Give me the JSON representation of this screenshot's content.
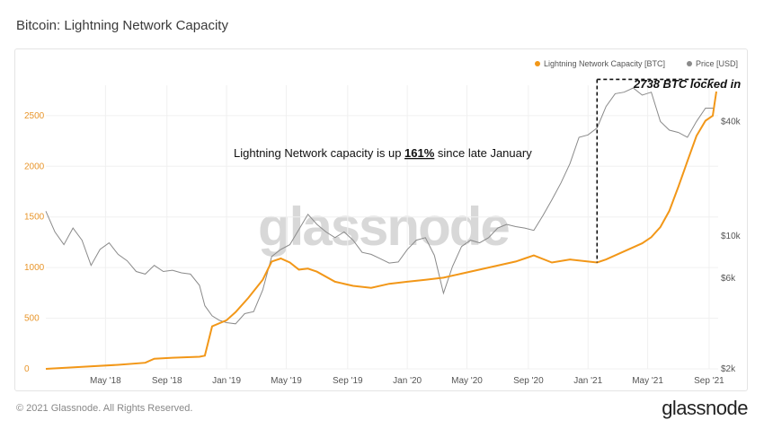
{
  "page": {
    "title": "Bitcoin: Lightning Network Capacity",
    "copyright": "© 2021 Glassnode. All Rights Reserved.",
    "logo": "glassnode"
  },
  "colors": {
    "capacity": "#f29718",
    "price": "#8a8a8a",
    "grid": "#f0f0f0",
    "axis_left": "#e8952a"
  },
  "chart_data": {
    "type": "line",
    "title": "Bitcoin: Lightning Network Capacity",
    "watermark": "glassnode",
    "x_ticks": [
      "May '18",
      "Sep '18",
      "Jan '19",
      "May '19",
      "Sep '19",
      "Jan '20",
      "May '20",
      "Sep '20",
      "Jan '21",
      "May '21",
      "Sep '21"
    ],
    "x_range": [
      2018.0,
      2021.72
    ],
    "x_tick_values": [
      2018.33,
      2018.67,
      2019.0,
      2019.33,
      2019.67,
      2020.0,
      2020.33,
      2020.67,
      2021.0,
      2021.33,
      2021.67
    ],
    "y_left": {
      "label": "Lightning Network Capacity [BTC]",
      "ticks": [
        "0",
        "500",
        "1000",
        "1500",
        "2000",
        "2500"
      ],
      "tick_values": [
        0,
        500,
        1000,
        1500,
        2000,
        2500
      ],
      "range": [
        0,
        2800
      ]
    },
    "y_right": {
      "label": "Price [USD]",
      "scale": "log",
      "ticks": [
        "$2k",
        "$6k",
        "$10k",
        "$40k"
      ],
      "tick_values": [
        2000,
        6000,
        10000,
        40000
      ],
      "range": [
        2000,
        62000
      ]
    },
    "legend": [
      {
        "name": "Lightning Network Capacity [BTC]",
        "color": "#f29718"
      },
      {
        "name": "Price [USD]",
        "color": "#8a8a8a"
      }
    ],
    "legend_position": "top-right",
    "annotations": {
      "headline_prefix": "Lightning Network capacity is up ",
      "headline_pct": "161%",
      "headline_suffix": " since late January",
      "locked_in": "2738 BTC locked in",
      "box_start_x": 2021.05,
      "box_end_x": 2021.71,
      "box_start_capacity": 1050,
      "box_end_capacity": 2738
    },
    "series": [
      {
        "name": "Lightning Network Capacity [BTC]",
        "axis": "left",
        "x": [
          2018.0,
          2018.2,
          2018.4,
          2018.55,
          2018.6,
          2018.7,
          2018.85,
          2018.88,
          2018.92,
          2019.0,
          2019.05,
          2019.12,
          2019.2,
          2019.25,
          2019.3,
          2019.35,
          2019.4,
          2019.45,
          2019.5,
          2019.6,
          2019.7,
          2019.8,
          2019.9,
          2020.0,
          2020.1,
          2020.2,
          2020.3,
          2020.4,
          2020.5,
          2020.6,
          2020.65,
          2020.7,
          2020.8,
          2020.9,
          2021.0,
          2021.05,
          2021.1,
          2021.2,
          2021.3,
          2021.35,
          2021.4,
          2021.45,
          2021.5,
          2021.55,
          2021.6,
          2021.65,
          2021.69,
          2021.7,
          2021.71
        ],
        "values": [
          0,
          20,
          40,
          60,
          100,
          110,
          120,
          130,
          420,
          480,
          560,
          700,
          880,
          1060,
          1090,
          1050,
          980,
          990,
          960,
          860,
          820,
          800,
          840,
          860,
          880,
          900,
          940,
          980,
          1020,
          1060,
          1090,
          1120,
          1050,
          1080,
          1060,
          1050,
          1080,
          1160,
          1240,
          1300,
          1400,
          1560,
          1800,
          2050,
          2300,
          2450,
          2500,
          2620,
          2738
        ]
      },
      {
        "name": "Price [USD]",
        "axis": "right",
        "x": [
          2018.0,
          2018.05,
          2018.1,
          2018.15,
          2018.2,
          2018.25,
          2018.3,
          2018.35,
          2018.4,
          2018.45,
          2018.5,
          2018.55,
          2018.6,
          2018.65,
          2018.7,
          2018.75,
          2018.8,
          2018.85,
          2018.88,
          2018.92,
          2018.96,
          2019.0,
          2019.05,
          2019.1,
          2019.15,
          2019.2,
          2019.25,
          2019.3,
          2019.35,
          2019.4,
          2019.45,
          2019.5,
          2019.55,
          2019.6,
          2019.65,
          2019.7,
          2019.75,
          2019.8,
          2019.85,
          2019.9,
          2019.95,
          2020.0,
          2020.05,
          2020.1,
          2020.15,
          2020.2,
          2020.25,
          2020.3,
          2020.35,
          2020.4,
          2020.45,
          2020.5,
          2020.55,
          2020.6,
          2020.65,
          2020.7,
          2020.75,
          2020.8,
          2020.85,
          2020.9,
          2020.95,
          2021.0,
          2021.05,
          2021.1,
          2021.15,
          2021.2,
          2021.25,
          2021.3,
          2021.35,
          2021.4,
          2021.45,
          2021.5,
          2021.55,
          2021.6,
          2021.65,
          2021.7
        ],
        "values": [
          13500,
          10500,
          9000,
          11000,
          9500,
          7000,
          8500,
          9200,
          8000,
          7400,
          6500,
          6300,
          7000,
          6500,
          6600,
          6400,
          6300,
          5500,
          4300,
          3800,
          3600,
          3500,
          3450,
          3900,
          4000,
          5200,
          7800,
          8500,
          9000,
          10800,
          13000,
          11500,
          10500,
          9800,
          10500,
          9500,
          8200,
          8000,
          7600,
          7200,
          7300,
          8500,
          9500,
          9800,
          7900,
          5000,
          6900,
          8800,
          9500,
          9200,
          9800,
          11000,
          11500,
          11200,
          11000,
          10700,
          12800,
          15500,
          19000,
          24000,
          33000,
          34000,
          37000,
          48000,
          56000,
          57000,
          60000,
          55000,
          57000,
          40000,
          36000,
          35000,
          33000,
          40000,
          47000,
          47000
        ]
      }
    ]
  }
}
